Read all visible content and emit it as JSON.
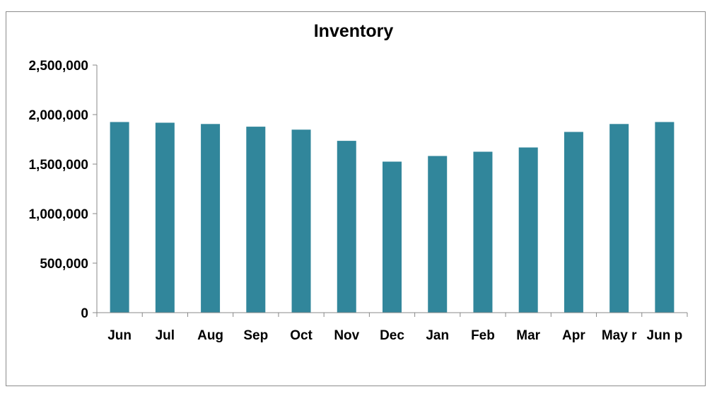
{
  "chart_data": {
    "type": "bar",
    "title": "Inventory",
    "xlabel": "",
    "ylabel": "",
    "categories": [
      "Jun",
      "Jul",
      "Aug",
      "Sep",
      "Oct",
      "Nov",
      "Dec",
      "Jan",
      "Feb",
      "Mar",
      "Apr",
      "May r",
      "Jun p"
    ],
    "values": [
      1925000,
      1918000,
      1905000,
      1878000,
      1848000,
      1735000,
      1525000,
      1582000,
      1625000,
      1668000,
      1825000,
      1905000,
      1925000
    ],
    "ylim": [
      0,
      2500000
    ],
    "yticks": [
      0,
      500000,
      1000000,
      1500000,
      2000000,
      2500000
    ],
    "ytick_labels": [
      "0",
      "500,000",
      "1,000,000",
      "1,500,000",
      "2,000,000",
      "2,500,000"
    ],
    "grid": false,
    "legend": "none",
    "bar_color": "#31869b"
  }
}
